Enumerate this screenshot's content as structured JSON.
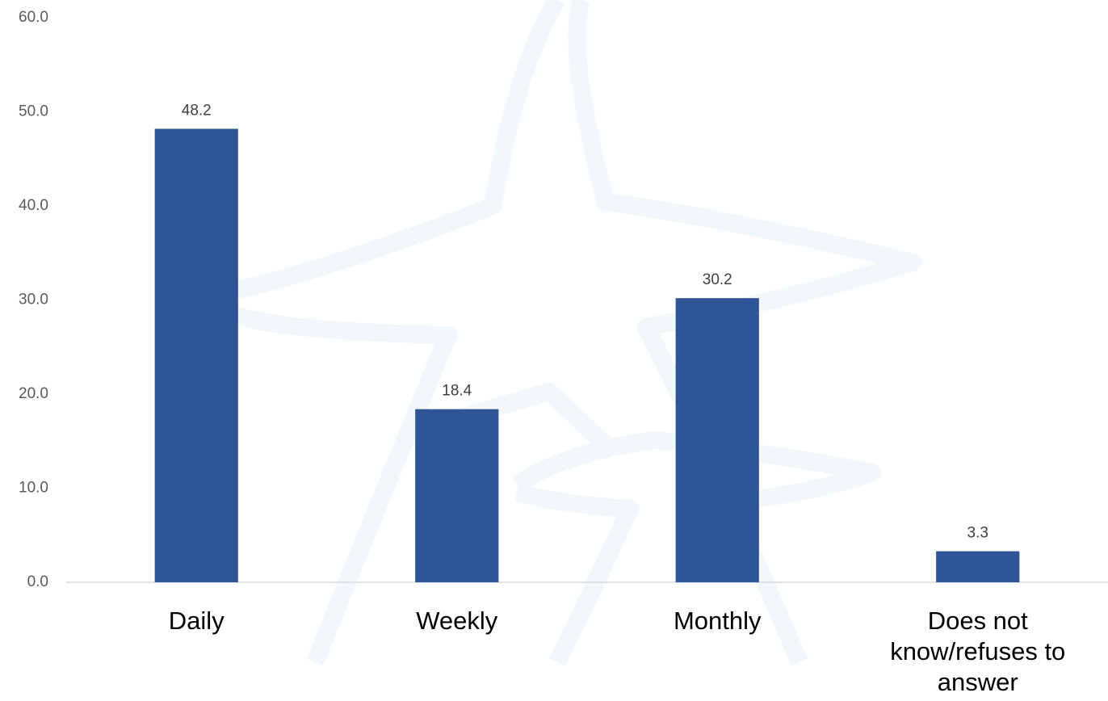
{
  "chart_data": {
    "type": "bar",
    "categories": [
      "Daily",
      "Weekly",
      "Monthly",
      "Does not know/refuses to answer"
    ],
    "values": [
      48.2,
      18.4,
      30.2,
      3.3
    ],
    "color": "#2f5597",
    "ylim": [
      0,
      60
    ],
    "yticks": [
      {
        "value": 0,
        "label": "0.0"
      },
      {
        "value": 10,
        "label": "10.0"
      },
      {
        "value": 20,
        "label": "20.0"
      },
      {
        "value": 30,
        "label": "30.0"
      },
      {
        "value": 40,
        "label": "40.0"
      },
      {
        "value": 50,
        "label": "50.0"
      },
      {
        "value": 60,
        "label": "60.0"
      }
    ],
    "grid": false
  }
}
